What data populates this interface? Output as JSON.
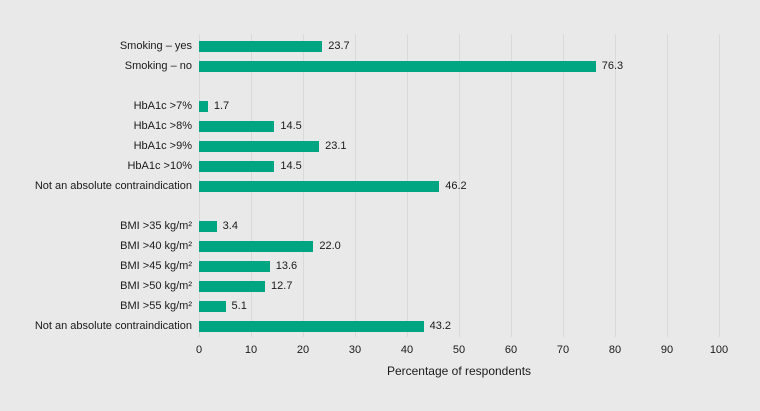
{
  "chart_data": {
    "type": "bar",
    "orientation": "horizontal",
    "title": "",
    "xlabel": "Percentage of respondents",
    "ylabel": "",
    "xlim": [
      0,
      100
    ],
    "xticks": [
      0,
      10,
      20,
      30,
      40,
      50,
      60,
      70,
      80,
      90,
      100
    ],
    "grid": "vertical",
    "value_labels": "right of bar, one decimal",
    "groups": [
      {
        "name": "smoking",
        "rows": [
          {
            "label": "Smoking – yes",
            "value": 23.7
          },
          {
            "label": "Smoking – no",
            "value": 76.3
          }
        ]
      },
      {
        "name": "hba1c",
        "rows": [
          {
            "label": "HbA1c >7%",
            "value": 1.7
          },
          {
            "label": "HbA1c >8%",
            "value": 14.5
          },
          {
            "label": "HbA1c >9%",
            "value": 23.1
          },
          {
            "label": "HbA1c >10%",
            "value": 14.5
          },
          {
            "label": "Not an absolute contraindication",
            "value": 46.2
          }
        ]
      },
      {
        "name": "bmi",
        "rows": [
          {
            "label": "BMI >35 kg/m²",
            "value": 3.4
          },
          {
            "label": "BMI >40 kg/m²",
            "value": 22.0
          },
          {
            "label": "BMI >45 kg/m²",
            "value": 13.6
          },
          {
            "label": "BMI >50 kg/m²",
            "value": 12.7
          },
          {
            "label": "BMI >55 kg/m²",
            "value": 5.1
          },
          {
            "label": "Not an absolute contraindication",
            "value": 43.2
          }
        ]
      }
    ],
    "colors": {
      "bar": "#00a681",
      "background": "#e9e9e9",
      "gridline": "#d9d9d9",
      "text": "#1a1a1a"
    }
  }
}
